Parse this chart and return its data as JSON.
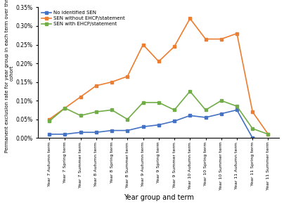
{
  "x_labels": [
    "Year 7 Autumn term",
    "Year 7 Spring term",
    "Year 7 Summer term",
    "Year 8 Autumn term",
    "Year 8 Spring term",
    "Year 8 Summer term",
    "Year 9 Autumn term",
    "Year 9 Spring term",
    "Year 9 Summer term",
    "Year 10 Autumn term",
    "Year 10 Spring term",
    "Year 10 Summer term",
    "Year 11 Autumn term",
    "Year 11 Spring term",
    "Year 11 Summer term"
  ],
  "series": [
    {
      "label": "No identified SEN",
      "color": "#4472C4",
      "marker": "s",
      "values": [
        0.0001,
        0.0001,
        0.00015,
        0.00015,
        0.0002,
        0.0002,
        0.0003,
        0.00035,
        0.00045,
        0.0006,
        0.00055,
        0.00065,
        0.00075,
        0.0,
        -5e-05
      ]
    },
    {
      "label": "SEN without EHCP/statement",
      "color": "#ED7D31",
      "marker": "s",
      "values": [
        0.0005,
        0.0008,
        0.0011,
        0.0014,
        0.0015,
        0.00165,
        0.0025,
        0.00205,
        0.00245,
        0.0032,
        0.00265,
        0.00265,
        0.0028,
        0.0007,
        0.0001
      ]
    },
    {
      "label": "SEN with EHCP/statement",
      "color": "#70AD47",
      "marker": "s",
      "values": [
        0.00045,
        0.0008,
        0.0006,
        0.0007,
        0.00075,
        0.0005,
        0.00095,
        0.00095,
        0.00075,
        0.00125,
        0.00075,
        0.001,
        0.00085,
        0.00025,
        0.0001
      ]
    }
  ],
  "xlabel": "Year group and term",
  "ylabel": "Permanent exclusion rate for year group in each term over three\ncohort",
  "ylim": [
    0.0,
    0.0035
  ],
  "yticks": [
    0.0,
    0.0005,
    0.001,
    0.0015,
    0.002,
    0.0025,
    0.003,
    0.0035
  ],
  "ytick_labels": [
    "0.00%",
    "0.05%",
    "0.10%",
    "0.15%",
    "0.20%",
    "0.25%",
    "0.30%",
    "0.35%"
  ],
  "bg_color": "#FFFFFF",
  "linewidth": 1.2,
  "markersize": 3
}
